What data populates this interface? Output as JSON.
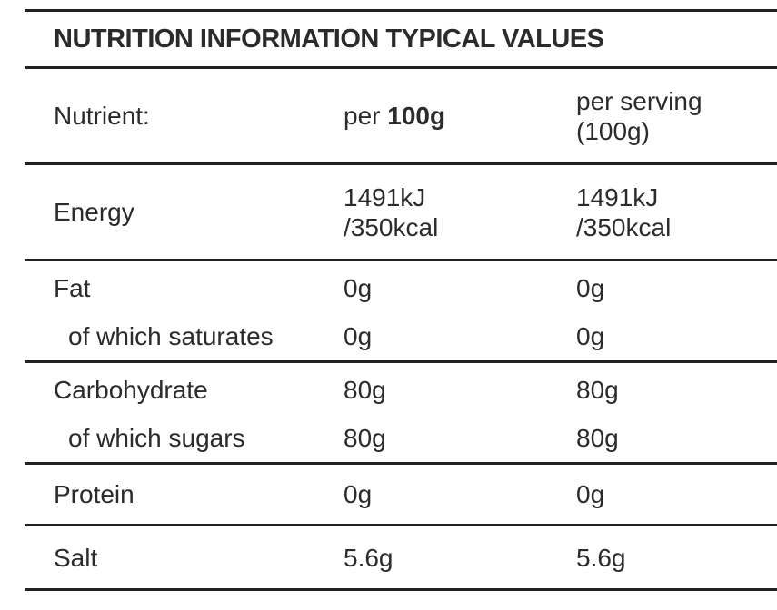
{
  "title": "NUTRITION INFORMATION TYPICAL VALUES",
  "header": {
    "nutrient": "Nutrient:",
    "per100_prefix": "per ",
    "per100_bold": "100g",
    "serving_line1": "per serving",
    "serving_line2": "(100g)"
  },
  "energy": {
    "label": "Energy",
    "per100_line1": "1491kJ",
    "per100_line2": "/350kcal",
    "serving_line1": "1491kJ",
    "serving_line2": "/350kcal"
  },
  "fat": {
    "label": "Fat",
    "per100": "0g",
    "serving": "0g",
    "sub_label": "of which saturates",
    "sub_per100": "0g",
    "sub_serving": "0g"
  },
  "carbohydrate": {
    "label": "Carbohydrate",
    "per100": "80g",
    "serving": "80g",
    "sub_label": "of which sugars",
    "sub_per100": "80g",
    "sub_serving": "80g"
  },
  "protein": {
    "label": "Protein",
    "per100": "0g",
    "serving": "0g"
  },
  "salt": {
    "label": "Salt",
    "per100": "5.6g",
    "serving": "5.6g"
  }
}
